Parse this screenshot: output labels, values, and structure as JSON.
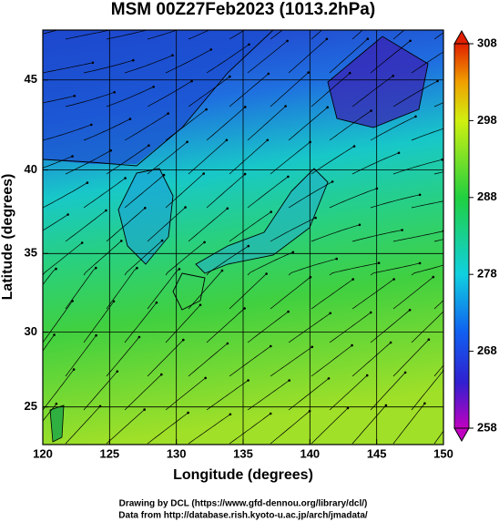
{
  "chart_data": {
    "type": "map",
    "projection": "mercator",
    "title": "MSM 00Z27Feb2023 (1013.2hPa)",
    "x_label": "Longitude (degrees)",
    "y_label": "Latitude  (degrees)",
    "xlim": [
      120,
      150
    ],
    "xticks": [
      120,
      125,
      130,
      135,
      140,
      145,
      150
    ],
    "ylim": [
      22.4,
      47.6
    ],
    "yticks": [
      25,
      30,
      35,
      40,
      45
    ],
    "grid": true,
    "colorbar": {
      "lim": [
        258,
        308
      ],
      "ticks": [
        258,
        268,
        278,
        288,
        298,
        308
      ]
    },
    "footer": [
      "Drawing by DCL (https://www.gfd-dennou.org/library/dcl/)",
      "Data from http://database.rish.kyoto-u.ac.jp/arch/jmadata/"
    ]
  }
}
